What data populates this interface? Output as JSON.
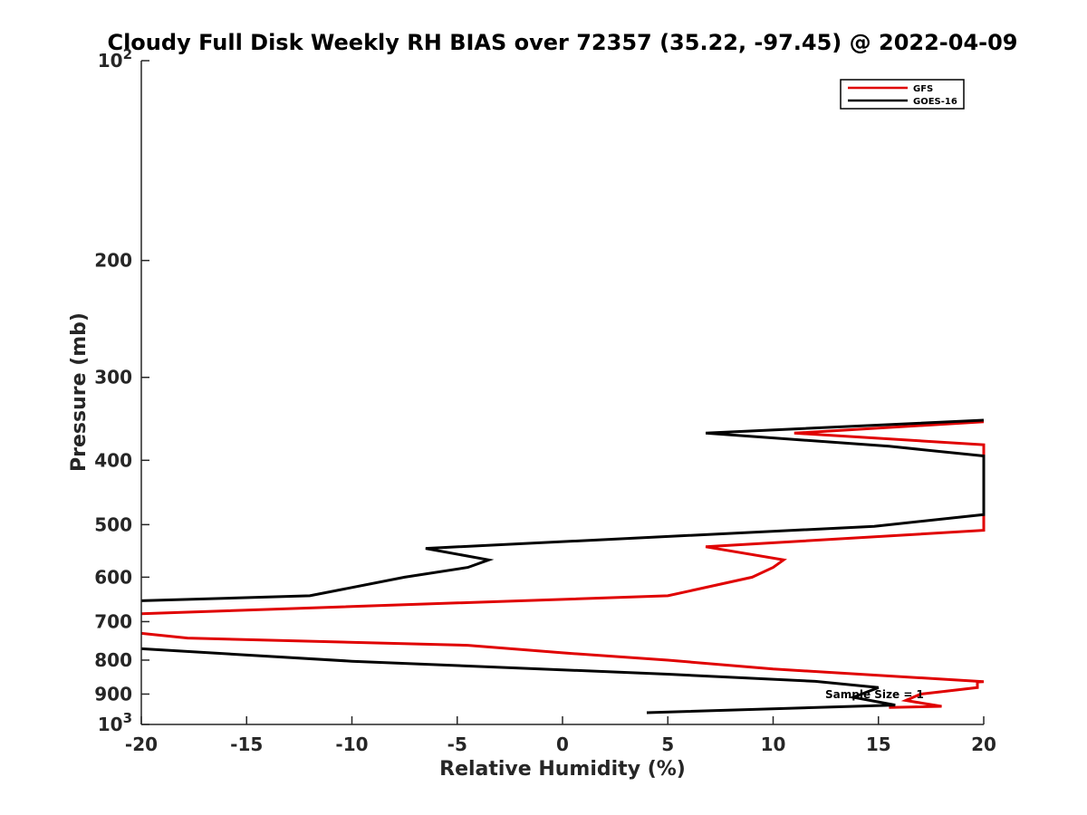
{
  "chart_data": {
    "type": "line",
    "title": "Cloudy Full Disk Weekly RH BIAS over 72357 (35.22, -97.45) @ 2022-04-09",
    "xlabel": "Relative Humidity (%)",
    "ylabel": "Pressure (mb)",
    "xlim": [
      -20,
      20
    ],
    "ylim": [
      100,
      1000
    ],
    "y_scale": "log",
    "y_reversed": true,
    "grid": false,
    "legend_position": "top-right",
    "x_ticks": [
      {
        "value": -20,
        "label": "-20"
      },
      {
        "value": -15,
        "label": "-15"
      },
      {
        "value": -10,
        "label": "-10"
      },
      {
        "value": -5,
        "label": "-5"
      },
      {
        "value": 0,
        "label": "0"
      },
      {
        "value": 5,
        "label": "5"
      },
      {
        "value": 10,
        "label": "10"
      },
      {
        "value": 15,
        "label": "15"
      },
      {
        "value": 20,
        "label": "20"
      }
    ],
    "y_ticks": [
      {
        "value": 100,
        "label": "10",
        "sup": "2"
      },
      {
        "value": 200,
        "label": "200"
      },
      {
        "value": 300,
        "label": "300"
      },
      {
        "value": 400,
        "label": "400"
      },
      {
        "value": 500,
        "label": "500"
      },
      {
        "value": 600,
        "label": "600"
      },
      {
        "value": 700,
        "label": "700"
      },
      {
        "value": 800,
        "label": "800"
      },
      {
        "value": 900,
        "label": "900"
      },
      {
        "value": 1000,
        "label": "10",
        "sup": "3"
      }
    ],
    "series": [
      {
        "name": "GFS",
        "color": "#e00000",
        "points": [
          {
            "x": 20,
            "y": 350
          },
          {
            "x": 11,
            "y": 364
          },
          {
            "x": 20,
            "y": 379
          },
          {
            "x": 20,
            "y": 510
          },
          {
            "x": 6.8,
            "y": 540
          },
          {
            "x": 10.5,
            "y": 565
          },
          {
            "x": 10,
            "y": 580
          },
          {
            "x": 9,
            "y": 600
          },
          {
            "x": 5,
            "y": 640
          },
          {
            "x": -20,
            "y": 681
          }
        ]
      },
      {
        "name": "GOES-16",
        "color": "#000000",
        "points": [
          {
            "x": 20,
            "y": 348
          },
          {
            "x": 6.8,
            "y": 364
          },
          {
            "x": 15.5,
            "y": 381
          },
          {
            "x": 20,
            "y": 394
          },
          {
            "x": 20,
            "y": 483
          },
          {
            "x": 14.8,
            "y": 503
          },
          {
            "x": -6.5,
            "y": 543
          },
          {
            "x": -3.5,
            "y": 565
          },
          {
            "x": -4.5,
            "y": 580
          },
          {
            "x": -7.5,
            "y": 600
          },
          {
            "x": -12,
            "y": 640
          },
          {
            "x": -20,
            "y": 651
          }
        ]
      },
      {
        "name": "GFS",
        "color": "#e00000",
        "points": [
          {
            "x": -20,
            "y": 729
          },
          {
            "x": -17.8,
            "y": 741
          },
          {
            "x": -4.5,
            "y": 760
          },
          {
            "x": 0,
            "y": 780
          },
          {
            "x": 5,
            "y": 800
          },
          {
            "x": 10,
            "y": 825
          },
          {
            "x": 20,
            "y": 862
          },
          {
            "x": 19.7,
            "y": 863
          },
          {
            "x": 19.7,
            "y": 880
          },
          {
            "x": 17,
            "y": 900
          },
          {
            "x": 16.3,
            "y": 920
          },
          {
            "x": 18,
            "y": 939
          },
          {
            "x": 15.5,
            "y": 943
          }
        ]
      },
      {
        "name": "GOES-16",
        "color": "#000000",
        "points": [
          {
            "x": -20,
            "y": 769
          },
          {
            "x": -10,
            "y": 803
          },
          {
            "x": 5,
            "y": 840
          },
          {
            "x": 12,
            "y": 861
          },
          {
            "x": 15,
            "y": 880
          },
          {
            "x": 13.8,
            "y": 910
          },
          {
            "x": 15.8,
            "y": 935
          },
          {
            "x": 4,
            "y": 960
          }
        ]
      }
    ],
    "legend": [
      {
        "name": "GFS",
        "color": "#e00000"
      },
      {
        "name": "GOES-16",
        "color": "#000000"
      }
    ],
    "annotation": {
      "text": "Sample Size = 1",
      "x": 15,
      "y": 900
    }
  }
}
